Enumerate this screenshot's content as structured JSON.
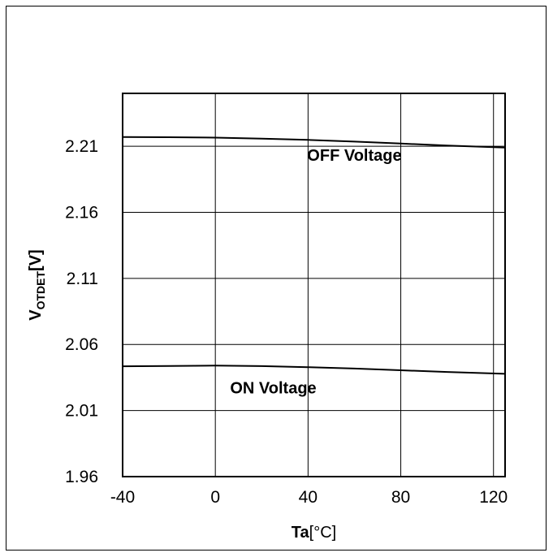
{
  "chart_data": {
    "type": "line",
    "title": "",
    "xlabel_main": "Ta",
    "xlabel_unit": "[°C]",
    "ylabel_main": "V",
    "ylabel_sub": "OTDET",
    "ylabel_unit": "[V]",
    "xlim": [
      -40,
      125
    ],
    "ylim": [
      1.96,
      2.25
    ],
    "x_ticks": [
      -40,
      0,
      40,
      80,
      120
    ],
    "y_ticks": [
      1.96,
      2.01,
      2.06,
      2.11,
      2.16,
      2.21
    ],
    "x_tick_labels": [
      "-40",
      "0",
      "40",
      "80",
      "120"
    ],
    "y_tick_labels": [
      "1.96",
      "2.01",
      "2.06",
      "2.11",
      "2.16",
      "2.21"
    ],
    "grid": true,
    "series": [
      {
        "x": [
          -40,
          -20,
          0,
          20,
          40,
          60,
          80,
          100,
          125
        ],
        "y": [
          2.217,
          2.2168,
          2.2165,
          2.2158,
          2.2148,
          2.2135,
          2.212,
          2.2105,
          2.209
        ]
      },
      {
        "x": [
          -40,
          -20,
          0,
          20,
          40,
          60,
          80,
          100,
          125
        ],
        "y": [
          2.0435,
          2.0437,
          2.044,
          2.0436,
          2.0428,
          2.0418,
          2.0405,
          2.0392,
          2.0378
        ]
      }
    ],
    "annotations": [
      {
        "text": "OFF Voltage",
        "x": 60,
        "y": 2.199
      },
      {
        "text": "ON Voltage",
        "x": 25,
        "y": 2.023
      }
    ],
    "colors": {
      "line": "#000000",
      "grid": "#000000",
      "background": "#ffffff"
    }
  }
}
